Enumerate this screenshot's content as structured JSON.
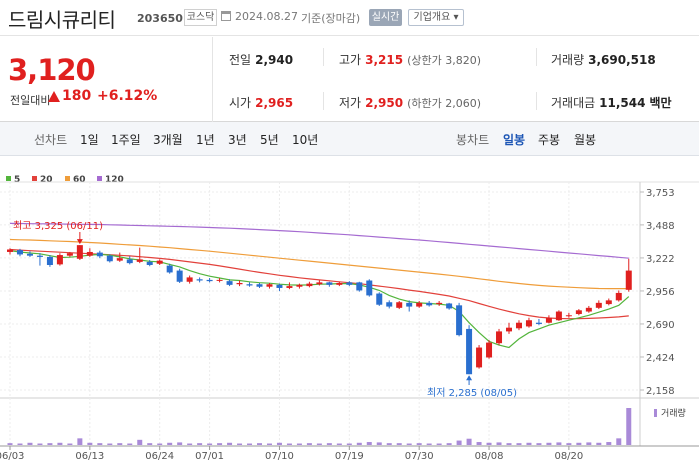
{
  "header": {
    "name": "드림시큐리티",
    "code": "203650",
    "market": "코스닥",
    "date": "2024.08.27",
    "base_label": "기준(장마감)",
    "realtime_label": "실시간",
    "info_label": "기업개요 ▾"
  },
  "summary": {
    "price": "3,120",
    "change_label": "전일대비",
    "change": "180",
    "change_pct": "+6.12%",
    "prev_label": "전일",
    "prev_value": "2,940",
    "high_label": "고가",
    "high_value": "3,215",
    "upper_limit": "(상한가 3,820)",
    "volume_label": "거래량",
    "volume_value": "3,690,518",
    "open_label": "시가",
    "open_value": "2,965",
    "low_label": "저가",
    "low_value": "2,950",
    "lower_limit": "(하한가 2,060)",
    "amount_label": "거래대금",
    "amount_value": "11,544",
    "amount_unit": "백만"
  },
  "tabs": {
    "line_label": "선차트",
    "line_items": [
      "1일",
      "1주일",
      "3개월",
      "1년",
      "3년",
      "5년",
      "10년"
    ],
    "candle_label": "봉차트",
    "candle_items": [
      "일봉",
      "주봉",
      "월봉"
    ],
    "candle_active": 0
  },
  "colors": {
    "up": "#e0201f",
    "down": "#2a6fcf",
    "ma5": "#53b53c",
    "ma20": "#e2413b",
    "ma60": "#ef9d3a",
    "ma120": "#a56bd1",
    "volume": "#a98ad8"
  },
  "chart_data": {
    "type": "candlestick",
    "legend": [
      {
        "name": "5",
        "color": "#53b53c"
      },
      {
        "name": "20",
        "color": "#e2413b"
      },
      {
        "name": "60",
        "color": "#ef9d3a"
      },
      {
        "name": "120",
        "color": "#a56bd1"
      }
    ],
    "y_ticks": [
      "3,753",
      "3,488",
      "3,222",
      "2,956",
      "2,690",
      "2,424",
      "2,158"
    ],
    "ylim": [
      2158,
      3753
    ],
    "x_tick_labels": [
      "06/03",
      "06/13",
      "06/24",
      "07/01",
      "07/10",
      "07/19",
      "07/30",
      "08/08",
      "08/20"
    ],
    "x_tick_index": [
      0,
      8,
      15,
      20,
      27,
      34,
      41,
      48,
      56
    ],
    "high_annotation": "최고 3,325 (06/11)",
    "low_annotation": "최저 2,285 (08/05)",
    "volume_label": "거래량",
    "candles": [
      {
        "o": 3270,
        "c": 3290,
        "h": 3300,
        "l": 3250
      },
      {
        "o": 3285,
        "c": 3250,
        "h": 3295,
        "l": 3235
      },
      {
        "o": 3255,
        "c": 3240,
        "h": 3275,
        "l": 3230
      },
      {
        "o": 3240,
        "c": 3230,
        "h": 3260,
        "l": 3160
      },
      {
        "o": 3230,
        "c": 3165,
        "h": 3245,
        "l": 3150
      },
      {
        "o": 3170,
        "c": 3245,
        "h": 3260,
        "l": 3160
      },
      {
        "o": 3240,
        "c": 3260,
        "h": 3270,
        "l": 3230
      },
      {
        "o": 3215,
        "c": 3325,
        "h": 3325,
        "l": 3205
      },
      {
        "o": 3240,
        "c": 3270,
        "h": 3300,
        "l": 3230
      },
      {
        "o": 3265,
        "c": 3235,
        "h": 3280,
        "l": 3220
      },
      {
        "o": 3240,
        "c": 3195,
        "h": 3250,
        "l": 3185
      },
      {
        "o": 3200,
        "c": 3220,
        "h": 3265,
        "l": 3190
      },
      {
        "o": 3210,
        "c": 3180,
        "h": 3235,
        "l": 3170
      },
      {
        "o": 3190,
        "c": 3210,
        "h": 3305,
        "l": 3180
      },
      {
        "o": 3190,
        "c": 3165,
        "h": 3205,
        "l": 3155
      },
      {
        "o": 3175,
        "c": 3200,
        "h": 3210,
        "l": 3165
      },
      {
        "o": 3160,
        "c": 3105,
        "h": 3175,
        "l": 3095
      },
      {
        "o": 3120,
        "c": 3030,
        "h": 3135,
        "l": 3020
      },
      {
        "o": 3030,
        "c": 3065,
        "h": 3080,
        "l": 3015
      },
      {
        "o": 3050,
        "c": 3040,
        "h": 3065,
        "l": 3025
      },
      {
        "o": 3045,
        "c": 3035,
        "h": 3060,
        "l": 3025
      },
      {
        "o": 3040,
        "c": 3045,
        "h": 3060,
        "l": 3025
      },
      {
        "o": 3035,
        "c": 3005,
        "h": 3050,
        "l": 2995
      },
      {
        "o": 3010,
        "c": 3020,
        "h": 3040,
        "l": 2995
      },
      {
        "o": 3010,
        "c": 3000,
        "h": 3025,
        "l": 2990
      },
      {
        "o": 3010,
        "c": 2990,
        "h": 3020,
        "l": 2980
      },
      {
        "o": 2990,
        "c": 3010,
        "h": 3020,
        "l": 2975
      },
      {
        "o": 3005,
        "c": 2980,
        "h": 3015,
        "l": 2955
      },
      {
        "o": 2980,
        "c": 2995,
        "h": 3025,
        "l": 2970
      },
      {
        "o": 2990,
        "c": 3005,
        "h": 3015,
        "l": 2975
      },
      {
        "o": 2995,
        "c": 3015,
        "h": 3030,
        "l": 2985
      },
      {
        "o": 3010,
        "c": 3025,
        "h": 3040,
        "l": 3000
      },
      {
        "o": 3025,
        "c": 3005,
        "h": 3030,
        "l": 2990
      },
      {
        "o": 3005,
        "c": 3020,
        "h": 3030,
        "l": 2995
      },
      {
        "o": 3025,
        "c": 3005,
        "h": 3035,
        "l": 2995
      },
      {
        "o": 3025,
        "c": 2960,
        "h": 3030,
        "l": 2950
      },
      {
        "o": 3040,
        "c": 2920,
        "h": 3050,
        "l": 2910
      },
      {
        "o": 2935,
        "c": 2845,
        "h": 2945,
        "l": 2835
      },
      {
        "o": 2865,
        "c": 2830,
        "h": 2880,
        "l": 2815
      },
      {
        "o": 2820,
        "c": 2865,
        "h": 2875,
        "l": 2810
      },
      {
        "o": 2860,
        "c": 2830,
        "h": 2880,
        "l": 2790
      },
      {
        "o": 2830,
        "c": 2860,
        "h": 2875,
        "l": 2820
      },
      {
        "o": 2860,
        "c": 2840,
        "h": 2875,
        "l": 2830
      },
      {
        "o": 2850,
        "c": 2860,
        "h": 2875,
        "l": 2835
      },
      {
        "o": 2855,
        "c": 2815,
        "h": 2860,
        "l": 2805
      },
      {
        "o": 2840,
        "c": 2600,
        "h": 2860,
        "l": 2590
      },
      {
        "o": 2650,
        "c": 2285,
        "h": 2680,
        "l": 2285
      },
      {
        "o": 2340,
        "c": 2500,
        "h": 2520,
        "l": 2330
      },
      {
        "o": 2420,
        "c": 2540,
        "h": 2560,
        "l": 2410
      },
      {
        "o": 2535,
        "c": 2630,
        "h": 2650,
        "l": 2520
      },
      {
        "o": 2630,
        "c": 2660,
        "h": 2700,
        "l": 2610
      },
      {
        "o": 2655,
        "c": 2700,
        "h": 2720,
        "l": 2640
      },
      {
        "o": 2670,
        "c": 2720,
        "h": 2740,
        "l": 2660
      },
      {
        "o": 2700,
        "c": 2690,
        "h": 2730,
        "l": 2680
      },
      {
        "o": 2700,
        "c": 2740,
        "h": 2760,
        "l": 2695
      },
      {
        "o": 2720,
        "c": 2790,
        "h": 2800,
        "l": 2715
      },
      {
        "o": 2760,
        "c": 2760,
        "h": 2780,
        "l": 2740
      },
      {
        "o": 2770,
        "c": 2800,
        "h": 2810,
        "l": 2760
      },
      {
        "o": 2790,
        "c": 2820,
        "h": 2835,
        "l": 2780
      },
      {
        "o": 2820,
        "c": 2860,
        "h": 2880,
        "l": 2810
      },
      {
        "o": 2850,
        "c": 2880,
        "h": 2895,
        "l": 2840
      },
      {
        "o": 2880,
        "c": 2940,
        "h": 2960,
        "l": 2870
      },
      {
        "o": 2965,
        "c": 3120,
        "h": 3215,
        "l": 2950
      }
    ],
    "ma5": [
      3280,
      3270,
      3262,
      3255,
      3240,
      3225,
      3228,
      3235,
      3245,
      3250,
      3245,
      3230,
      3215,
      3205,
      3195,
      3190,
      3170,
      3150,
      3120,
      3095,
      3075,
      3060,
      3045,
      3040,
      3030,
      3022,
      3018,
      3010,
      3005,
      3003,
      3005,
      3010,
      3012,
      3015,
      3015,
      3005,
      2985,
      2960,
      2920,
      2890,
      2870,
      2860,
      2855,
      2850,
      2840,
      2790,
      2700,
      2620,
      2550,
      2520,
      2500,
      2570,
      2620,
      2650,
      2680,
      2700,
      2720,
      2740,
      2760,
      2785,
      2810,
      2840,
      2910
    ],
    "ma20": [
      3290,
      3285,
      3280,
      3276,
      3272,
      3268,
      3264,
      3260,
      3256,
      3252,
      3248,
      3243,
      3238,
      3232,
      3225,
      3218,
      3210,
      3200,
      3190,
      3180,
      3170,
      3158,
      3145,
      3132,
      3118,
      3105,
      3094,
      3082,
      3072,
      3062,
      3053,
      3045,
      3038,
      3030,
      3022,
      3014,
      3005,
      2995,
      2985,
      2975,
      2963,
      2952,
      2940,
      2928,
      2915,
      2897,
      2878,
      2855,
      2832,
      2810,
      2790,
      2772,
      2757,
      2745,
      2738,
      2734,
      2732,
      2733,
      2735,
      2738,
      2742,
      2747,
      2755
    ],
    "ma60": [
      3370,
      3368,
      3366,
      3363,
      3360,
      3357,
      3354,
      3350,
      3346,
      3342,
      3337,
      3332,
      3327,
      3322,
      3316,
      3310,
      3304,
      3297,
      3290,
      3283,
      3276,
      3268,
      3260,
      3252,
      3244,
      3236,
      3228,
      3220,
      3212,
      3204,
      3196,
      3188,
      3180,
      3172,
      3164,
      3156,
      3148,
      3140,
      3132,
      3124,
      3116,
      3108,
      3100,
      3092,
      3083,
      3074,
      3064,
      3054,
      3044,
      3034,
      3025,
      3016,
      3008,
      3001,
      2995,
      2990,
      2986,
      2982,
      2979,
      2976,
      2975,
      2975,
      2975
    ],
    "ma120": [
      3500,
      3499,
      3498,
      3497,
      3496,
      3495,
      3494,
      3493,
      3492,
      3491,
      3489,
      3487,
      3485,
      3483,
      3481,
      3479,
      3477,
      3475,
      3473,
      3470,
      3467,
      3464,
      3461,
      3458,
      3454,
      3450,
      3446,
      3442,
      3438,
      3433,
      3428,
      3423,
      3418,
      3413,
      3408,
      3402,
      3396,
      3390,
      3384,
      3378,
      3372,
      3366,
      3360,
      3353,
      3346,
      3339,
      3332,
      3325,
      3318,
      3311,
      3304,
      3297,
      3290,
      3283,
      3276,
      3269,
      3262,
      3255,
      3248,
      3241,
      3234,
      3227,
      3220
    ],
    "volume": [
      0.05,
      0.04,
      0.06,
      0.04,
      0.05,
      0.06,
      0.04,
      0.18,
      0.06,
      0.05,
      0.04,
      0.05,
      0.04,
      0.14,
      0.05,
      0.04,
      0.06,
      0.07,
      0.04,
      0.05,
      0.04,
      0.05,
      0.06,
      0.04,
      0.04,
      0.05,
      0.04,
      0.06,
      0.04,
      0.04,
      0.05,
      0.04,
      0.05,
      0.04,
      0.04,
      0.06,
      0.08,
      0.07,
      0.05,
      0.05,
      0.04,
      0.05,
      0.04,
      0.04,
      0.05,
      0.12,
      0.17,
      0.08,
      0.06,
      0.07,
      0.05,
      0.05,
      0.06,
      0.05,
      0.06,
      0.07,
      0.05,
      0.06,
      0.07,
      0.06,
      0.08,
      0.18,
      1.0
    ]
  }
}
